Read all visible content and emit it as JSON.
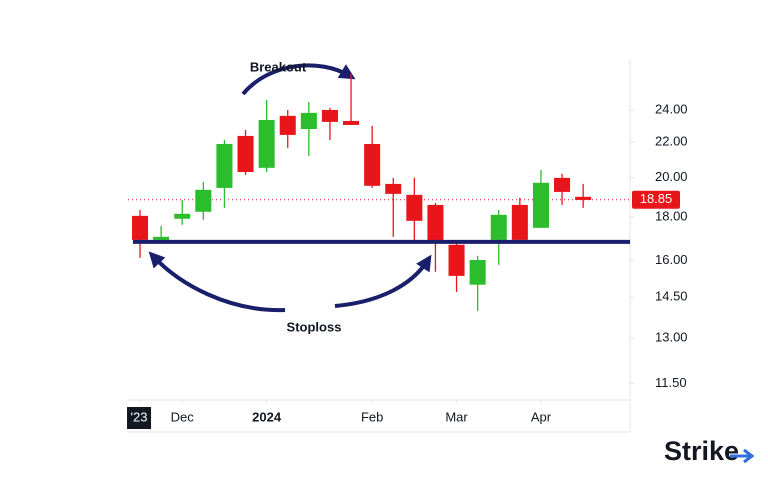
{
  "chart_data": {
    "type": "candlestick",
    "x": [
      0,
      1,
      2,
      3,
      4,
      5,
      6,
      7,
      8,
      9,
      10,
      11,
      12,
      13,
      14,
      15,
      16,
      17,
      18,
      19,
      20,
      21
    ],
    "open": [
      18.05,
      16.92,
      17.91,
      18.25,
      19.46,
      22.38,
      20.54,
      23.62,
      22.8,
      24.0,
      23.3,
      21.9,
      19.67,
      19.1,
      18.59,
      16.7,
      15.0,
      16.92,
      18.59,
      17.48,
      19.99,
      19.0
    ],
    "high": [
      18.34,
      17.57,
      18.84,
      19.78,
      22.14,
      22.74,
      24.65,
      24.0,
      24.52,
      24.13,
      26.44,
      22.99,
      19.99,
      19.99,
      18.69,
      16.92,
      16.21,
      18.34,
      18.95,
      20.43,
      20.21,
      19.67
    ],
    "low": [
      16.12,
      16.83,
      17.62,
      17.86,
      18.44,
      20.15,
      20.31,
      21.67,
      21.21,
      22.14,
      23.05,
      19.46,
      17.06,
      16.92,
      15.53,
      14.71,
      13.98,
      15.82,
      16.83,
      17.48,
      18.59,
      18.44
    ],
    "close": [
      16.92,
      17.06,
      18.15,
      19.36,
      21.9,
      20.31,
      23.36,
      22.44,
      23.81,
      23.24,
      23.05,
      19.57,
      19.15,
      17.81,
      16.83,
      15.36,
      16.03,
      18.1,
      16.92,
      19.73,
      19.25,
      18.84
    ],
    "up_color": "#2bbd2b",
    "down_color": "#e8151b",
    "xlim": [
      -0.57,
      23.22
    ],
    "xticks": [
      {
        "value": 0,
        "label": "'23"
      },
      {
        "value": 2,
        "label": "Dec"
      },
      {
        "value": 6,
        "label": "2024"
      },
      {
        "value": 11,
        "label": "Feb"
      },
      {
        "value": 15,
        "label": "Mar"
      },
      {
        "value": 19,
        "label": "Apr"
      }
    ],
    "ylim": [
      11.0,
      27.45
    ],
    "log_scale": true,
    "yticks": [
      {
        "value": 24,
        "label": "24.00"
      },
      {
        "value": 22,
        "label": "22.00"
      },
      {
        "value": 20,
        "label": "20.00"
      },
      {
        "value": 18,
        "label": "18.00"
      },
      {
        "value": 16,
        "label": "16.00"
      },
      {
        "value": 14.5,
        "label": "14.50"
      },
      {
        "value": 13,
        "label": "13.00"
      },
      {
        "value": 11.5,
        "label": "11.50"
      }
    ],
    "last_price": {
      "value": 18.85,
      "label": "18.85"
    },
    "support_level": 16.83,
    "annotations": [
      "Breakout",
      "Stoploss"
    ],
    "logo": "Strike"
  }
}
